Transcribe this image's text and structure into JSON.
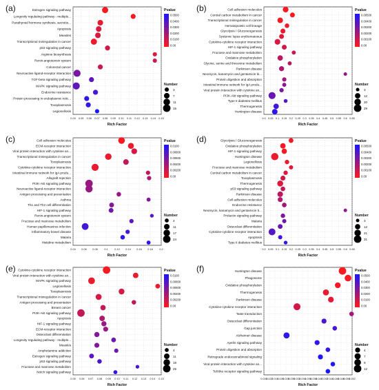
{
  "figure": {
    "colorbar_gradient": [
      "#1a16ff",
      "#ff1a1a"
    ]
  },
  "chart_data": [
    {
      "panel": "(a)",
      "type": "scatter",
      "xlabel": "Rich Factor",
      "ylabel": "",
      "xlim": [
        0.04,
        0.15
      ],
      "xticks": [
        "0.04",
        "0.05",
        "0.06",
        "0.07",
        "0.08",
        "0.09",
        "0.10",
        "0.11",
        "0.12",
        "0.13",
        "0.14",
        "0.15"
      ],
      "categories": [
        "Estrogen signaling pathway",
        "Longevity regulating pathway - multiple...",
        "Parathyroid hormone synthesis, secretio...",
        "Apoptosis",
        "Measles",
        "Transcriptional misregulation in cancer",
        "p53 signaling pathway",
        "Arginine biosynthesis",
        "Renin-angiotensin system",
        "Colorectal cancer",
        "Neuroactive ligand-receptor interaction",
        "TGF-beta signaling pathway",
        "MAPK signaling pathway",
        "Endocrine resistance",
        "Protein processing in endoplasmic retic...",
        "Toxoplasmosis",
        "Legionellosis"
      ],
      "x": [
        0.08,
        0.115,
        0.074,
        0.072,
        0.071,
        0.066,
        0.083,
        0.142,
        0.142,
        0.074,
        0.045,
        0.063,
        0.044,
        0.068,
        0.057,
        0.059,
        0.07
      ],
      "size": [
        9,
        5,
        7,
        7,
        7,
        9,
        5,
        3,
        3,
        5,
        13,
        5,
        13,
        5,
        5,
        5,
        3
      ],
      "pvalue": [
        0.002,
        0.002,
        0.005,
        0.008,
        0.008,
        0.004,
        0.01,
        0.008,
        0.012,
        0.012,
        0.03,
        0.035,
        0.035,
        0.04,
        0.045,
        0.045,
        0.05
      ],
      "color_legend": {
        "title": "Pvalue",
        "ticks": [
          "0.0500",
          "0.0400",
          "0.0300",
          "0.0200",
          "0.0100",
          "0.00"
        ],
        "max": 0.05
      },
      "size_legend": {
        "title": "Number",
        "values": [
          3,
          7,
          11,
          15
        ]
      }
    },
    {
      "panel": "(b)",
      "type": "scatter",
      "xlabel": "Rich Factor",
      "ylabel": "",
      "xlim": [
        0.0,
        0.65
      ],
      "xticks": [
        "0.0",
        "0.05",
        "0.1",
        "0.15",
        "0.2",
        "0.25",
        "0.3",
        "0.35",
        "0.4",
        "0.45",
        "0.5",
        "0.55",
        "0.6",
        "0.65"
      ],
      "categories": [
        "Cell adhesion molecules",
        "Central carbon metabolism in cancer",
        "Transcriptional misregulation in cancer",
        "Hematopoietic cell lineage",
        "Glycolysis / Gluconeogenesis",
        "Systemic lupus erythematosus",
        "Cytokine-cytokine receptor interaction",
        "HIF-1 signaling pathway",
        "Fructose and mannose metabolism",
        "Oxidative phosphorylation",
        "Glycine, serine and threonine metabolism",
        "Parkinson disease",
        "Neomycin, kanamycin and gentamicin bi...",
        "Protein digestion and absorption",
        "Intestinal immune network for IgA produ...",
        "Viral protein interaction with cytokine an...",
        "PI3K-Akt signaling pathway",
        "Type II diabetes mellitus",
        "Thermogenesis",
        "Huntington disease"
      ],
      "x": [
        0.16,
        0.21,
        0.12,
        0.17,
        0.14,
        0.13,
        0.1,
        0.15,
        0.22,
        0.12,
        0.19,
        0.13,
        0.6,
        0.15,
        0.15,
        0.13,
        0.06,
        0.16,
        0.09,
        0.08
      ],
      "size": [
        14,
        9,
        13,
        7,
        9,
        9,
        14,
        9,
        5,
        12,
        5,
        10,
        3,
        6,
        5,
        6,
        25,
        4,
        12,
        13
      ],
      "pvalue": [
        0.0002,
        0.0002,
        0.0003,
        0.0005,
        0.0006,
        0.0008,
        0.001,
        0.0012,
        0.0015,
        0.0018,
        0.002,
        0.0022,
        0.003,
        0.0025,
        0.003,
        0.0035,
        0.004,
        0.0045,
        0.005,
        0.0055
      ],
      "color_legend": {
        "title": "Pvalue",
        "ticks": [
          "0.00500",
          "0.00400",
          "0.00300",
          "0.00200",
          "0.00100",
          "0.00"
        ],
        "max": 0.006
      },
      "size_legend": {
        "title": "Number",
        "values": [
          3,
          12,
          20,
          29
        ]
      }
    },
    {
      "panel": "(c)",
      "type": "scatter",
      "xlabel": "Rich Factor",
      "ylabel": "",
      "xlim": [
        0.04,
        0.2
      ],
      "xticks": [
        "0.04",
        "0.06",
        "0.08",
        "0.1",
        "0.12",
        "0.14",
        "0.16",
        "0.18",
        "0.2"
      ],
      "categories": [
        "Cell adhesion molecules",
        "ECM-receptor interaction",
        "Viral protein interaction with cytokine an...",
        "Transcriptional misregulation in cancer",
        "Toxoplasmosis",
        "Cytokine-cytokine receptor interaction",
        "Intestinal immune network for IgA produ...",
        "Allograft rejection",
        "PI3K-Akt signaling pathway",
        "Neuroactive ligand-receptor interaction",
        "Antigen processing and presentation",
        "Asthma",
        "Th1 and Th2 cell differentiation",
        "HIF-1 signaling pathway",
        "Renin-angiotensin system",
        "Fructose and mannose metabolism",
        "Human papillomavirus infection",
        "Inflammatory bowel disease",
        "Malaria",
        "Histidine metabolism"
      ],
      "x": [
        0.128,
        0.145,
        0.151,
        0.104,
        0.136,
        0.08,
        0.176,
        0.178,
        0.069,
        0.069,
        0.123,
        0.177,
        0.11,
        0.109,
        0.183,
        0.146,
        0.062,
        0.139,
        0.13,
        0.177
      ],
      "size": [
        18,
        13,
        12,
        17,
        11,
        21,
        5,
        5,
        24,
        22,
        6,
        4,
        7,
        7,
        3,
        5,
        19,
        5,
        6,
        4
      ],
      "pvalue": [
        0.0005,
        0.001,
        0.002,
        0.001,
        0.003,
        0.001,
        0.003,
        0.004,
        0.005,
        0.005,
        0.005,
        0.006,
        0.006,
        0.007,
        0.008,
        0.008,
        0.009,
        0.009,
        0.01,
        0.01
      ],
      "color_legend": {
        "title": "Pvalue",
        "ticks": [
          "0.0100",
          "0.00800",
          "0.00600",
          "0.00400",
          "0.00200",
          "0.00"
        ],
        "max": 0.011
      },
      "size_legend": {
        "title": "Number",
        "values": [
          4,
          11,
          17,
          24
        ]
      }
    },
    {
      "panel": "(d)",
      "type": "scatter",
      "xlabel": "Rich Factor",
      "ylabel": "",
      "xlim": [
        0.0,
        0.65
      ],
      "xticks": [
        "0.0",
        "0.05",
        "0.1",
        "0.15",
        "0.2",
        "0.25",
        "0.3",
        "0.35",
        "0.4",
        "0.45",
        "0.5",
        "0.55",
        "0.6",
        "0.65"
      ],
      "categories": [
        "Glycolysis / Gluconeogenesis",
        "Oxidative phosphorylation",
        "HIF-1 signaling pathway",
        "Huntington disease",
        "Legionellosis",
        "Fructose and mannose metabolism",
        "Central carbon metabolism in cancer",
        "Toxoplasmosis",
        "Thermogenesis",
        "p53 signaling pathway",
        "Parkinson disease",
        "Cell adhesion molecules",
        "Endocrine resistance",
        "Neomycin, kanamycin and gentamicin b...",
        "Prolactin signaling pathway",
        "Malaria",
        "Osteoclast differentiation",
        "Cytokine-cytokine receptor interaction",
        "Apoptosis",
        "Type II diabetes mellitus"
      ],
      "x": [
        0.2,
        0.14,
        0.15,
        0.08,
        0.17,
        0.2,
        0.16,
        0.14,
        0.12,
        0.14,
        0.12,
        0.12,
        0.15,
        0.6,
        0.14,
        0.15,
        0.12,
        0.06,
        0.12,
        0.16
      ],
      "size": [
        9,
        13,
        12,
        29,
        7,
        6,
        7,
        10,
        17,
        8,
        14,
        10,
        8,
        3,
        7,
        6,
        9,
        25,
        6,
        4
      ],
      "pvalue": [
        0.0002,
        0.0003,
        0.0004,
        0.0005,
        0.0006,
        0.0008,
        0.001,
        0.0012,
        0.001,
        0.0016,
        0.0018,
        0.002,
        0.0024,
        0.003,
        0.0034,
        0.0038,
        0.004,
        0.0045,
        0.005,
        0.0055
      ],
      "color_legend": {
        "title": "Pvalue",
        "ticks": [
          "0.00500",
          "0.00400",
          "0.00300",
          "0.00200",
          "0.00100",
          "0.00"
        ],
        "max": 0.006
      },
      "size_legend": {
        "title": "Number",
        "values": [
          3,
          12,
          21,
          31
        ]
      }
    },
    {
      "panel": "(e)",
      "type": "scatter",
      "xlabel": "Rich Factor",
      "ylabel": "",
      "xlim": [
        0.05,
        0.15
      ],
      "xticks": [
        "0.05",
        "0.06",
        "0.07",
        "0.08",
        "0.09",
        "0.10",
        "0.11",
        "0.12",
        "0.13",
        "0.14",
        "0.15"
      ],
      "categories": [
        "Cytokine-cytokine receptor interaction",
        "Viral protein interaction with cytokine an...",
        "MAPK signaling pathway",
        "Legionellosis",
        "Toxoplasmosis",
        "Transcriptional misregulation in cancer",
        "Antigen processing and presentation",
        "Breast cancer",
        "PI3K-Akt signaling pathway",
        "Apoptosis",
        "HIF-1 signaling pathway",
        "ECM-receptor interaction",
        "Osteoclast differentiation",
        "Longevity regulating pathway - multiple...",
        "Measles",
        "Amphetamine addiction",
        "Estrogen signaling pathway",
        "p53 signaling pathway",
        "Fructose and mannose metabolism",
        "Notch signaling pathway"
      ],
      "x": [
        0.088,
        0.121,
        0.071,
        0.146,
        0.105,
        0.079,
        0.119,
        0.084,
        0.059,
        0.083,
        0.085,
        0.087,
        0.077,
        0.096,
        0.077,
        0.099,
        0.071,
        0.08,
        0.123,
        0.098
      ],
      "size": [
        25,
        11,
        19,
        7,
        13,
        14,
        6,
        10,
        25,
        11,
        9,
        8,
        9,
        7,
        8,
        5,
        7,
        6,
        3,
        4
      ],
      "pvalue": [
        0.0005,
        0.001,
        0.001,
        0.001,
        0.002,
        0.002,
        0.003,
        0.003,
        0.003,
        0.004,
        0.005,
        0.005,
        0.006,
        0.007,
        0.006,
        0.007,
        0.008,
        0.009,
        0.009,
        0.01
      ],
      "color_legend": {
        "title": "Pvalue",
        "ticks": [
          "0.0100",
          "0.00800",
          "0.00600",
          "0.00400",
          "0.00200",
          "0.00"
        ],
        "max": 0.011
      },
      "size_legend": {
        "title": "Number",
        "values": [
          4,
          11,
          18,
          25
        ]
      }
    },
    {
      "panel": "(f)",
      "type": "scatter",
      "xlabel": "Rich Factor",
      "ylabel": "",
      "xlim": [
        0.02,
        0.052
      ],
      "xticks": [
        "0.020",
        "0.022",
        "0.024",
        "0.026",
        "0.028",
        "0.030",
        "0.032",
        "0.034",
        "0.036",
        "0.038",
        "0.040",
        "0.042",
        "0.044",
        "0.046",
        "0.048",
        "0.050",
        "0.052"
      ],
      "categories": [
        "Huntington disease",
        "Phagosome",
        "Oxidative phosphorylation",
        "Thermogenesis",
        "Parkinson disease",
        "Cytokine-cytokine receptor interaction",
        "Taste transduction",
        "Osteoclast differentiation",
        "Gap junction",
        "Alzheimer disease",
        "Apelin signaling pathway",
        "Protein digestion and absorption",
        "Retrograde endocannabinoid signaling",
        "Viral protein interaction with cytokine an...",
        "Toll-like receptor signaling pathway"
      ],
      "x": [
        0.0485,
        0.0505,
        0.0468,
        0.0425,
        0.0443,
        0.032,
        0.0518,
        0.0418,
        0.0457,
        0.0282,
        0.0393,
        0.0432,
        0.0405,
        0.045,
        0.0432
      ],
      "size": [
        12,
        9,
        6,
        7,
        6,
        10,
        3,
        4,
        3,
        7,
        4,
        3,
        4,
        3,
        3
      ],
      "pvalue": [
        0.001,
        0.002,
        0.003,
        0.005,
        0.006,
        0.01,
        0.02,
        0.04,
        0.04,
        0.045,
        0.045,
        0.045,
        0.048,
        0.048,
        0.05
      ],
      "color_legend": {
        "title": "Pvalue",
        "ticks": [
          "0.0500",
          "0.0400",
          "0.0300",
          "0.0200",
          "0.0100",
          "0.00"
        ],
        "max": 0.05
      },
      "size_legend": {
        "title": "Number",
        "values": [
          4,
          7,
          9,
          12
        ]
      }
    }
  ]
}
